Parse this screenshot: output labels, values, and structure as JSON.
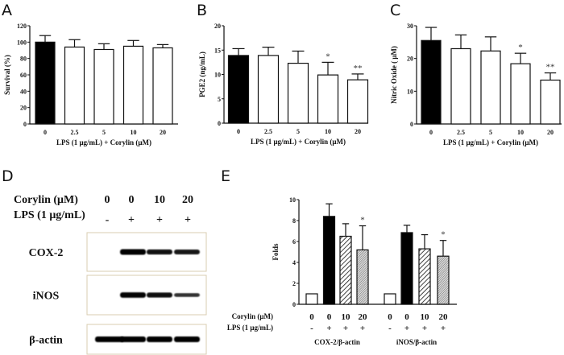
{
  "panel_labels": {
    "a": "A",
    "b": "B",
    "c": "C",
    "d": "D",
    "e": "E"
  },
  "chart_data": [
    {
      "id": "A",
      "type": "bar",
      "categories": [
        "0",
        "2.5",
        "5",
        "10",
        "20"
      ],
      "values": [
        100,
        94,
        91,
        95,
        93
      ],
      "errors": [
        8,
        9,
        7,
        7,
        4
      ],
      "significance": [
        "",
        "",
        "",
        "",
        ""
      ],
      "fills": [
        "black",
        "white",
        "white",
        "white",
        "white"
      ],
      "xlabel": "LPS (1 μg/mL) + Corylin (μM)",
      "ylabel": "Survival (%)",
      "ylim": [
        0,
        120
      ],
      "yticks": [
        0,
        20,
        40,
        60,
        80,
        100,
        120
      ]
    },
    {
      "id": "B",
      "type": "bar",
      "categories": [
        "0",
        "2.5",
        "5",
        "10",
        "20"
      ],
      "values": [
        13.9,
        13.9,
        12.3,
        9.9,
        8.9
      ],
      "errors": [
        1.4,
        1.7,
        2.5,
        2.6,
        1.2
      ],
      "significance": [
        "",
        "",
        "",
        "*",
        "**"
      ],
      "fills": [
        "black",
        "white",
        "white",
        "white",
        "white"
      ],
      "xlabel": "LPS (1 μg/mL) + Corylin (μM)",
      "ylabel": "PGE2 (ng/mL)",
      "ylim": [
        0,
        20
      ],
      "yticks": [
        0,
        5,
        10,
        15,
        20
      ]
    },
    {
      "id": "C",
      "type": "bar",
      "categories": [
        "0",
        "2.5",
        "5",
        "10",
        "20"
      ],
      "values": [
        25.5,
        23.0,
        22.3,
        18.4,
        13.4
      ],
      "errors": [
        4.0,
        4.2,
        4.3,
        3.2,
        2.2
      ],
      "significance": [
        "",
        "",
        "",
        "*",
        "**"
      ],
      "fills": [
        "black",
        "white",
        "white",
        "white",
        "white"
      ],
      "xlabel": "LPS (1 μg/mL) + Corylin (μM)",
      "ylabel": "Nitric Oxide ( μM)",
      "ylim": [
        0,
        30
      ],
      "yticks": [
        0,
        10,
        20,
        30
      ]
    },
    {
      "id": "E",
      "type": "bar",
      "groups": [
        {
          "name": "COX-2/β-actin",
          "values": [
            1,
            8.4,
            6.5,
            5.2
          ],
          "errors": [
            0,
            1.2,
            1.2,
            2.3
          ],
          "significance": [
            "",
            "",
            "",
            "*"
          ]
        },
        {
          "name": "iNOS/β-actin",
          "values": [
            1,
            6.85,
            5.3,
            4.6
          ],
          "errors": [
            0,
            0.7,
            1.35,
            1.5
          ],
          "significance": [
            "",
            "",
            "",
            "*"
          ]
        }
      ],
      "fills": [
        "white",
        "black",
        "hatch",
        "dense-hatch"
      ],
      "corylin_label": "Corylin (μM)",
      "lps_label": "LPS (1 μg/mL)",
      "corylin_values": [
        "0",
        "0",
        "10",
        "20"
      ],
      "lps_values": [
        "-",
        "+",
        "+",
        "+"
      ],
      "ylabel": "Folds",
      "ylim": [
        0,
        10
      ],
      "yticks": [
        0,
        2,
        4,
        6,
        8,
        10
      ]
    }
  ],
  "blot": {
    "corylin_label": "Corylin (μM)",
    "lps_label": "LPS (1 μg/mL)",
    "corylin_values": [
      "0",
      "0",
      "10",
      "20"
    ],
    "lps_values": [
      "-",
      "+",
      "+",
      "+"
    ],
    "rows": [
      {
        "name": "COX-2",
        "band_intensity": [
          0,
          1.0,
          0.85,
          0.8
        ]
      },
      {
        "name": "iNOS",
        "band_intensity": [
          0,
          0.95,
          0.85,
          0.55
        ]
      },
      {
        "name": "β-actin",
        "band_intensity": [
          1.0,
          1.0,
          1.0,
          1.0
        ]
      }
    ]
  }
}
